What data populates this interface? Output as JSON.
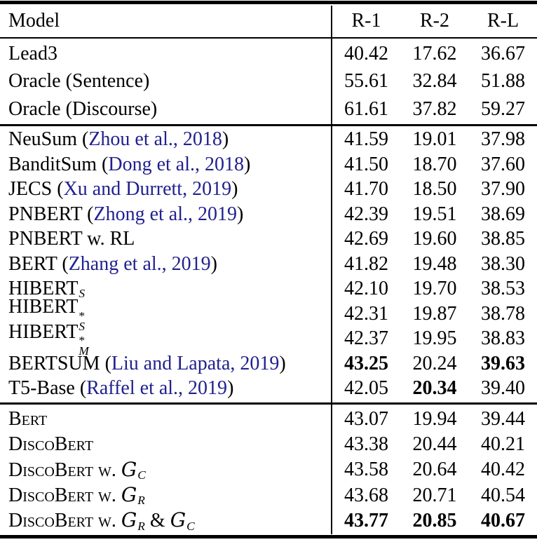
{
  "colors": {
    "background": "#ffffff",
    "text": "#000000",
    "rule": "#000000",
    "citation": "#21218f"
  },
  "table": {
    "header": {
      "model": "Model",
      "cols": [
        "R-1",
        "R-2",
        "R-L"
      ]
    },
    "sections": [
      {
        "name": "baselines",
        "rows": [
          {
            "segs": [
              {
                "t": "Lead3"
              }
            ],
            "vals": [
              "40.42",
              "17.62",
              "36.67"
            ],
            "bold": [
              0,
              0,
              0
            ]
          },
          {
            "segs": [
              {
                "t": "Oracle (Sentence)"
              }
            ],
            "vals": [
              "55.61",
              "32.84",
              "51.88"
            ],
            "bold": [
              0,
              0,
              0
            ]
          },
          {
            "segs": [
              {
                "t": "Oracle (Discourse)"
              }
            ],
            "vals": [
              "61.61",
              "37.82",
              "59.27"
            ],
            "bold": [
              0,
              0,
              0
            ]
          }
        ]
      },
      {
        "name": "prior-work",
        "rows": [
          {
            "segs": [
              {
                "t": "NeuSum ("
              },
              {
                "t": "Zhou et al., 2018",
                "s": "cite"
              },
              {
                "t": ")"
              }
            ],
            "vals": [
              "41.59",
              "19.01",
              "37.98"
            ],
            "bold": [
              0,
              0,
              0
            ]
          },
          {
            "segs": [
              {
                "t": "BanditSum ("
              },
              {
                "t": "Dong et al., 2018",
                "s": "cite"
              },
              {
                "t": ")"
              }
            ],
            "vals": [
              "41.50",
              "18.70",
              "37.60"
            ],
            "bold": [
              0,
              0,
              0
            ]
          },
          {
            "segs": [
              {
                "t": "JECS ("
              },
              {
                "t": "Xu and Durrett, 2019",
                "s": "cite"
              },
              {
                "t": ")"
              }
            ],
            "vals": [
              "41.70",
              "18.50",
              "37.90"
            ],
            "bold": [
              0,
              0,
              0
            ]
          },
          {
            "segs": [
              {
                "t": "PNBERT ("
              },
              {
                "t": "Zhong et al., 2019",
                "s": "cite"
              },
              {
                "t": ")"
              }
            ],
            "vals": [
              "42.39",
              "19.51",
              "38.69"
            ],
            "bold": [
              0,
              0,
              0
            ]
          },
          {
            "segs": [
              {
                "t": "PNBERT w. RL"
              }
            ],
            "vals": [
              "42.69",
              "19.60",
              "38.85"
            ],
            "bold": [
              0,
              0,
              0
            ]
          },
          {
            "segs": [
              {
                "t": "BERT ("
              },
              {
                "t": "Zhang et al., 2019",
                "s": "cite"
              },
              {
                "t": ")"
              }
            ],
            "vals": [
              "41.82",
              "19.48",
              "38.30"
            ],
            "bold": [
              0,
              0,
              0
            ]
          },
          {
            "segs": [
              {
                "t": "HIBERT"
              },
              {
                "t": "S",
                "s": "sub"
              }
            ],
            "vals": [
              "42.10",
              "19.70",
              "38.53"
            ],
            "bold": [
              0,
              0,
              0
            ]
          },
          {
            "segs": [
              {
                "t": "HIBERT"
              },
              {
                "s": "supsub",
                "sup": "*",
                "sub": "S"
              }
            ],
            "vals": [
              "42.31",
              "19.87",
              "38.78"
            ],
            "bold": [
              0,
              0,
              0
            ]
          },
          {
            "segs": [
              {
                "t": "HIBERT"
              },
              {
                "s": "supsub",
                "sup": "*",
                "sub": "M"
              }
            ],
            "vals": [
              "42.37",
              "19.95",
              "38.83"
            ],
            "bold": [
              0,
              0,
              0
            ]
          },
          {
            "segs": [
              {
                "t": "BERTSUM ("
              },
              {
                "t": "Liu and Lapata, 2019",
                "s": "cite"
              },
              {
                "t": ")"
              }
            ],
            "vals": [
              "43.25",
              "20.24",
              "39.63"
            ],
            "bold": [
              1,
              0,
              1
            ]
          },
          {
            "segs": [
              {
                "t": "T5-Base ("
              },
              {
                "t": "Raffel et al., 2019",
                "s": "cite"
              },
              {
                "t": ")"
              }
            ],
            "vals": [
              "42.05",
              "20.34",
              "39.40"
            ],
            "bold": [
              0,
              1,
              0
            ]
          }
        ]
      },
      {
        "name": "this-work",
        "rows": [
          {
            "segs": [
              {
                "t": "Bert",
                "s": "sc"
              }
            ],
            "vals": [
              "43.07",
              "19.94",
              "39.44"
            ],
            "bold": [
              0,
              0,
              0
            ]
          },
          {
            "segs": [
              {
                "t": "DiscoBert",
                "s": "sc"
              }
            ],
            "vals": [
              "43.38",
              "20.44",
              "40.21"
            ],
            "bold": [
              0,
              0,
              0
            ]
          },
          {
            "segs": [
              {
                "t": "DiscoBert w. ",
                "s": "sc"
              },
              {
                "t": "G",
                "s": "cal"
              },
              {
                "t": "C",
                "s": "sub"
              }
            ],
            "vals": [
              "43.58",
              "20.64",
              "40.42"
            ],
            "bold": [
              0,
              0,
              0
            ]
          },
          {
            "segs": [
              {
                "t": "DiscoBert w. ",
                "s": "sc"
              },
              {
                "t": "G",
                "s": "cal"
              },
              {
                "t": "R",
                "s": "sub"
              }
            ],
            "vals": [
              "43.68",
              "20.71",
              "40.54"
            ],
            "bold": [
              0,
              0,
              0
            ]
          },
          {
            "segs": [
              {
                "t": "DiscoBert w. ",
                "s": "sc"
              },
              {
                "t": "G",
                "s": "cal"
              },
              {
                "t": "R",
                "s": "sub"
              },
              {
                "t": " & "
              },
              {
                "t": "G",
                "s": "cal"
              },
              {
                "t": "C",
                "s": "sub"
              }
            ],
            "vals": [
              "43.77",
              "20.85",
              "40.67"
            ],
            "bold": [
              1,
              1,
              1
            ]
          }
        ]
      }
    ]
  }
}
